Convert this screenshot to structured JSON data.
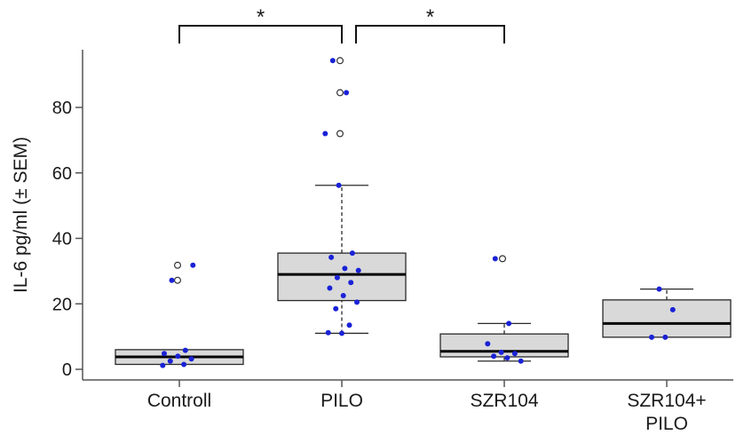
{
  "chart_data": {
    "type": "box",
    "ylabel": "IL-6 pg/ml (± SEM)",
    "xlabel": "",
    "ylim": [
      0,
      95
    ],
    "yticks": [
      0,
      20,
      40,
      60,
      80
    ],
    "categories": [
      "Controll",
      "PILO",
      "SZR104",
      "SZR104+\nPILO"
    ],
    "groups": [
      {
        "label_lines": [
          "Controll"
        ],
        "box": {
          "min": 1.5,
          "q1": 1.5,
          "median": 3.8,
          "q3": 6.0,
          "max": 6.0
        },
        "outliers": [
          27.2,
          31.8
        ],
        "points": [
          1.2,
          1.5,
          2.5,
          3.2,
          4.0,
          4.8,
          5.8,
          27.2,
          31.8
        ]
      },
      {
        "label_lines": [
          "PILO"
        ],
        "box": {
          "min": 11.0,
          "q1": 21.0,
          "median": 29.0,
          "q3": 35.5,
          "max": 56.2
        },
        "outliers": [
          72.0,
          84.5,
          94.3
        ],
        "points": [
          11.0,
          11.2,
          13.5,
          18.5,
          20.5,
          22.5,
          24.8,
          26.5,
          28.0,
          30.2,
          30.8,
          34.2,
          35.5,
          56.2,
          72.0,
          84.5,
          94.3
        ]
      },
      {
        "label_lines": [
          "SZR104"
        ],
        "box": {
          "min": 2.5,
          "q1": 3.8,
          "median": 5.5,
          "q3": 10.8,
          "max": 14.0
        },
        "outliers": [
          33.8
        ],
        "points": [
          2.5,
          3.5,
          4.0,
          4.8,
          5.2,
          7.8,
          14.0,
          33.8
        ]
      },
      {
        "label_lines": [
          "SZR104+",
          "PILO"
        ],
        "box": {
          "min": 9.8,
          "q1": 9.8,
          "median": 14.0,
          "q3": 21.2,
          "max": 24.5
        },
        "outliers": [],
        "points": [
          9.8,
          9.8,
          18.2,
          24.5
        ]
      }
    ],
    "significance": [
      {
        "from": 0,
        "to": 1,
        "label": "*"
      },
      {
        "from": 1,
        "to": 2,
        "label": "*"
      }
    ],
    "colors": {
      "point": "#1a22d6",
      "box_fill": "#d9d9d9",
      "outline": "#2a2a2a",
      "axis": "#555555"
    }
  }
}
